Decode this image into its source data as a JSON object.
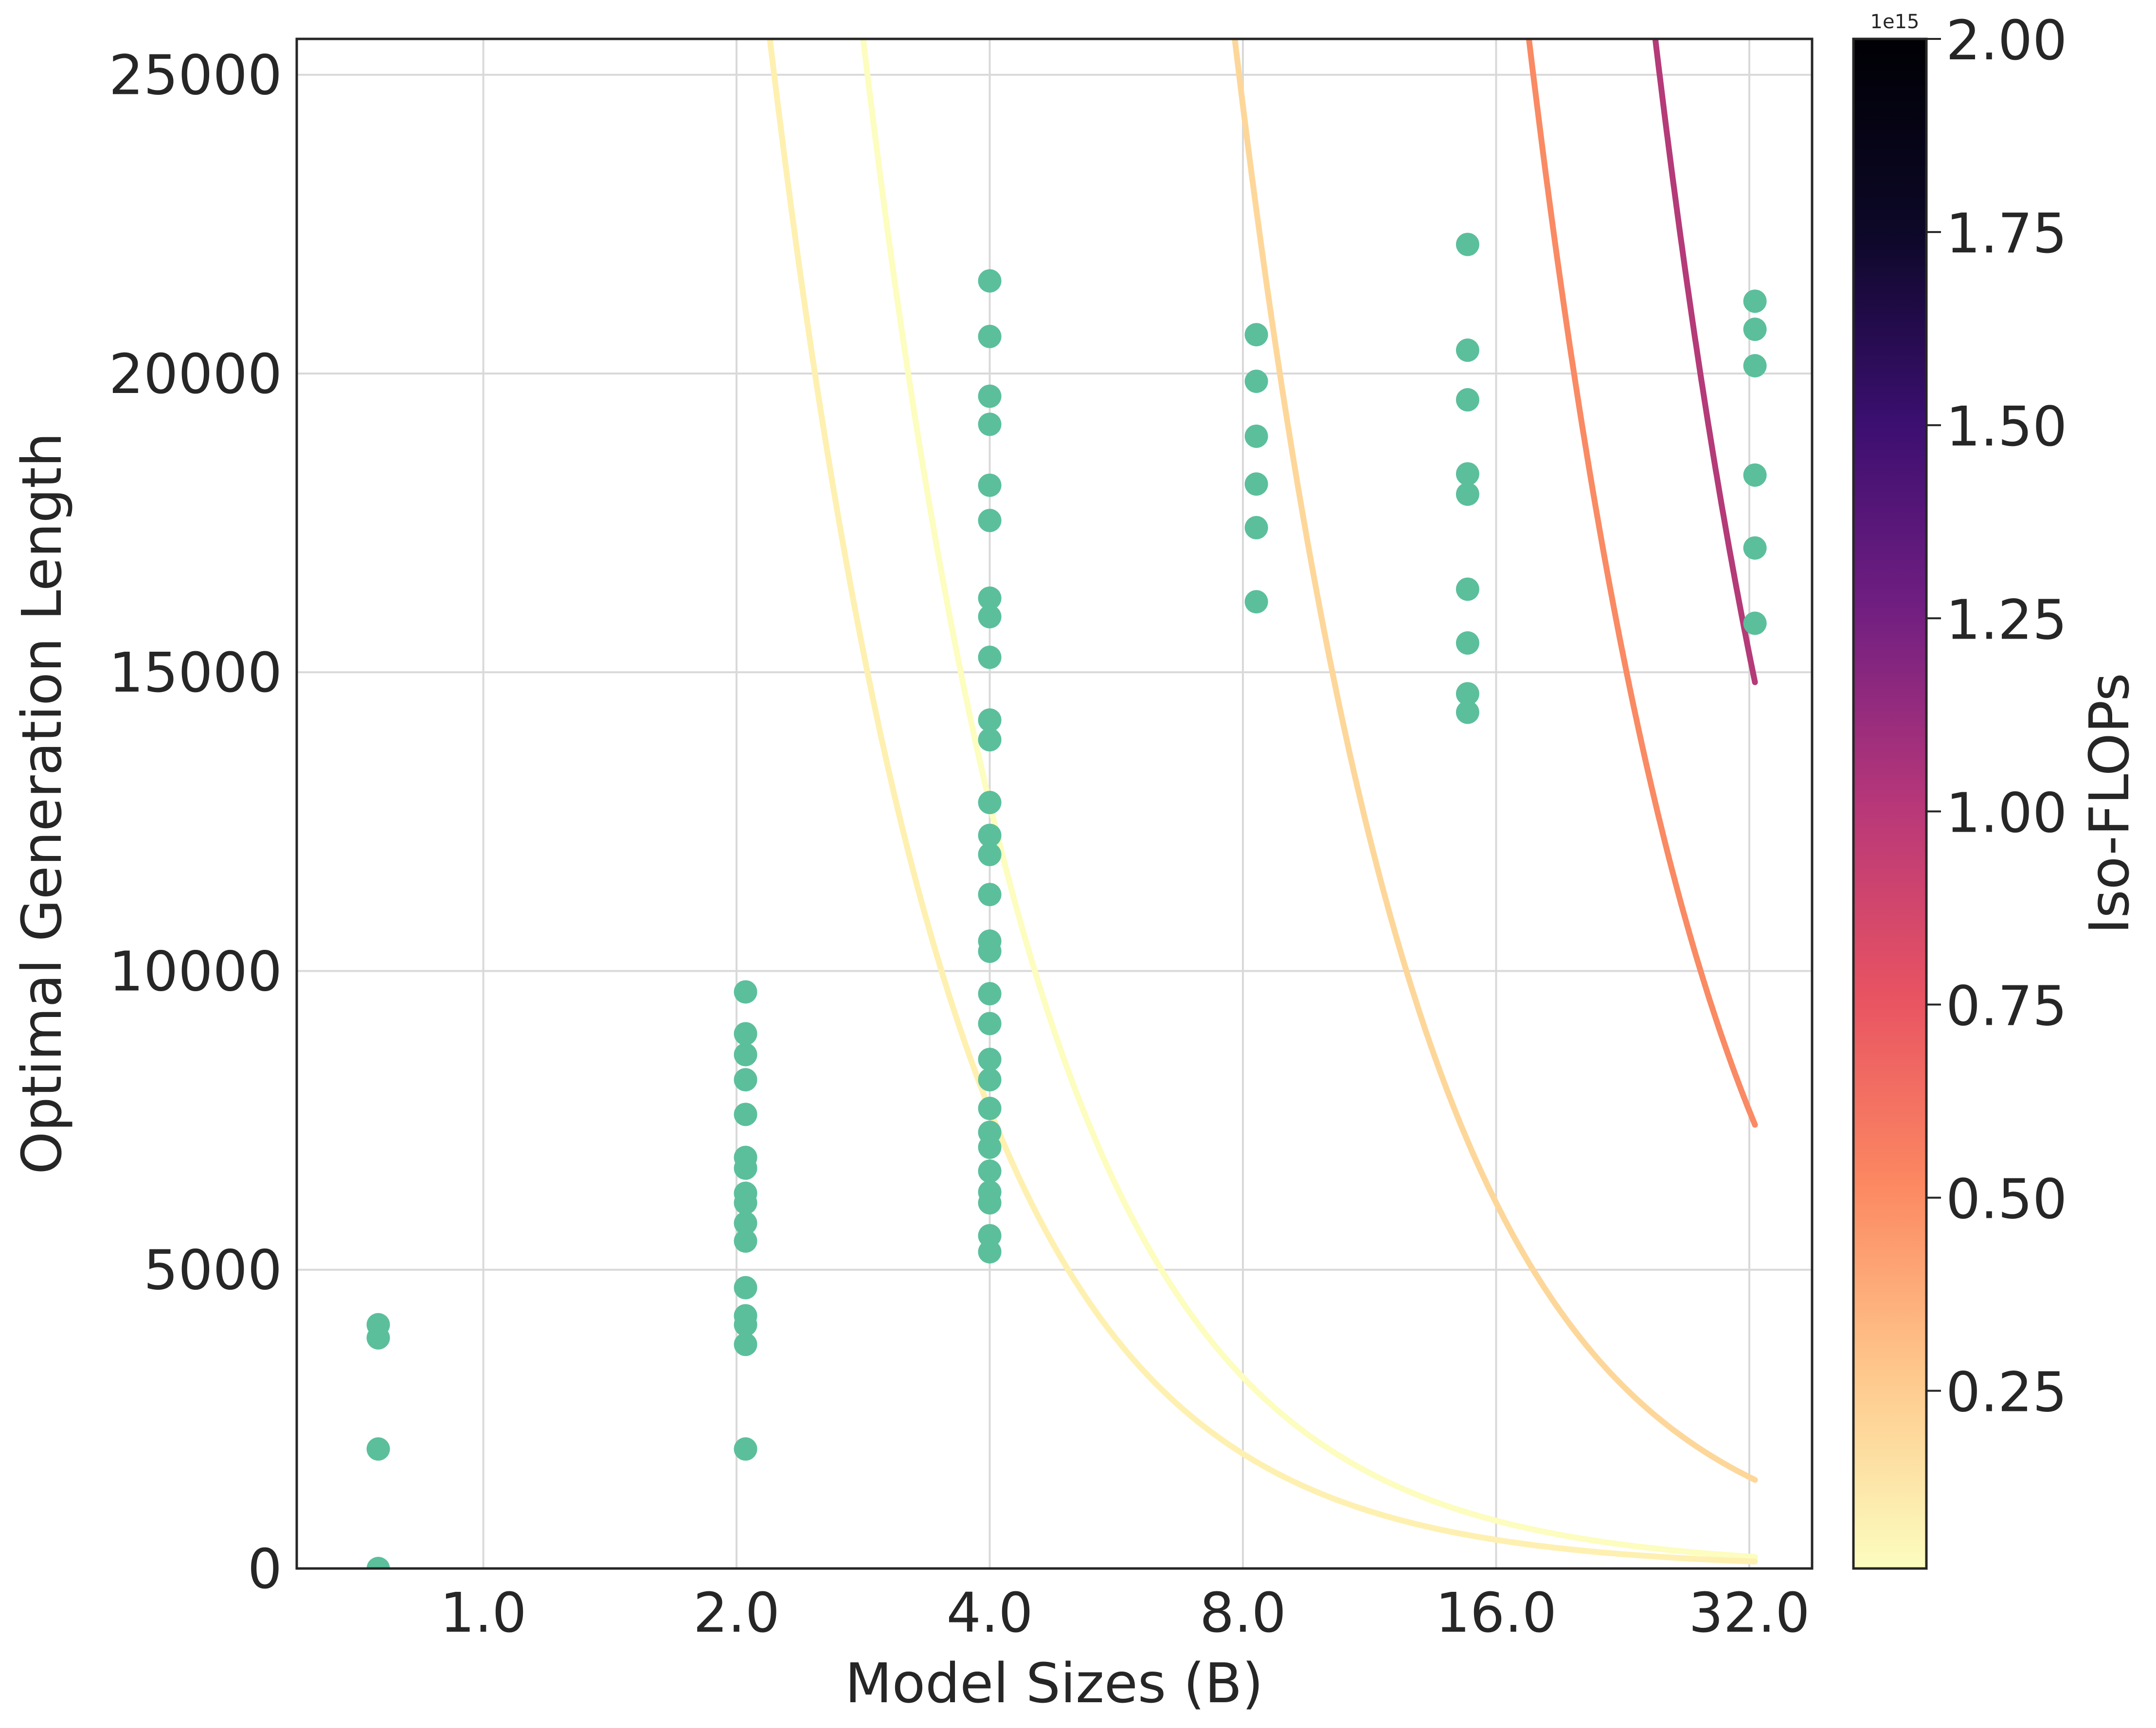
{
  "chart_data": {
    "type": "scatter",
    "title": "",
    "xlabel": "Model Sizes (B)",
    "ylabel": "Optimal Generation Length",
    "x_scale": "log2",
    "xlim": [
      0.6,
      38
    ],
    "ylim": [
      0,
      25600
    ],
    "x_ticks": [
      1.0,
      2.0,
      4.0,
      8.0,
      16.0,
      32.0
    ],
    "x_tick_labels": [
      "1.0",
      "2.0",
      "4.0",
      "8.0",
      "16.0",
      "32.0"
    ],
    "y_ticks": [
      0,
      5000,
      10000,
      15000,
      20000,
      25000
    ],
    "y_tick_labels": [
      "0",
      "5000",
      "10000",
      "15000",
      "20000",
      "25000"
    ],
    "grid": true,
    "scatter_color": "#5bbf9c",
    "scatter_points": [
      {
        "x": 0.75,
        "y": [
          4080,
          3860,
          2000,
          0
        ]
      },
      {
        "x": 2.05,
        "y": [
          9650,
          8950,
          8600,
          8180,
          7600,
          6880,
          6700,
          6280,
          6120,
          5780,
          5480,
          4700,
          4230,
          4080,
          3750,
          2000
        ]
      },
      {
        "x": 4.0,
        "y": [
          21550,
          20620,
          19620,
          19150,
          18130,
          17540,
          16240,
          15930,
          15250,
          14200,
          13870,
          12820,
          12270,
          11950,
          11280,
          10500,
          10330,
          9620,
          9120,
          8520,
          8180,
          7700,
          7300,
          7050,
          6650,
          6300,
          6120,
          5570,
          5300
        ]
      },
      {
        "x": 8.3,
        "y": [
          20650,
          19870,
          18950,
          18150,
          17420,
          16180
        ]
      },
      {
        "x": 14.8,
        "y": [
          22160,
          20390,
          19560,
          18320,
          17980,
          16390,
          15490,
          14640,
          14330
        ]
      },
      {
        "x": 32.5,
        "y": [
          21210,
          20740,
          20130,
          18300,
          17080,
          15820
        ]
      }
    ],
    "iso_flop_curves": [
      {
        "flops": 20000000000000.0,
        "color": "#fcfdbf",
        "x_range": [
          0.75,
          32.5
        ],
        "y_at_32": 200
      },
      {
        "flops": 50000000000000.0,
        "color": "#fef0b0",
        "x_range": [
          0.75,
          32.5
        ],
        "y_at_32": 120
      },
      {
        "flops": 200000000000000.0,
        "color": "#fdd79a",
        "x_range": [
          1.95,
          32.5
        ],
        "y_at_32": 1530
      },
      {
        "flops": 500000000000000.0,
        "color": "#f98a63",
        "x_range": [
          9.5,
          32.5
        ],
        "y_at_32": 7660
      },
      {
        "flops": 1000000000000000.0,
        "color": "#b43a78",
        "x_range": [
          20.6,
          32.5
        ],
        "y_at_32": 15300
      }
    ],
    "colorbar": {
      "label": "Iso-FLOPs",
      "multiplier": "1e15",
      "range": [
        0.02,
        2.0
      ],
      "ticks": [
        0.25,
        0.5,
        0.75,
        1.0,
        1.25,
        1.5,
        1.75,
        2.0
      ],
      "tick_labels": [
        "0.25",
        "0.50",
        "0.75",
        "1.00",
        "1.25",
        "1.50",
        "1.75",
        "2.00"
      ],
      "colormap": "magma_r",
      "stops": [
        "#fcfdbf",
        "#fec98d",
        "#fc8961",
        "#e85362",
        "#b73779",
        "#721f81",
        "#3b0f70",
        "#0c0827",
        "#000004"
      ]
    }
  }
}
